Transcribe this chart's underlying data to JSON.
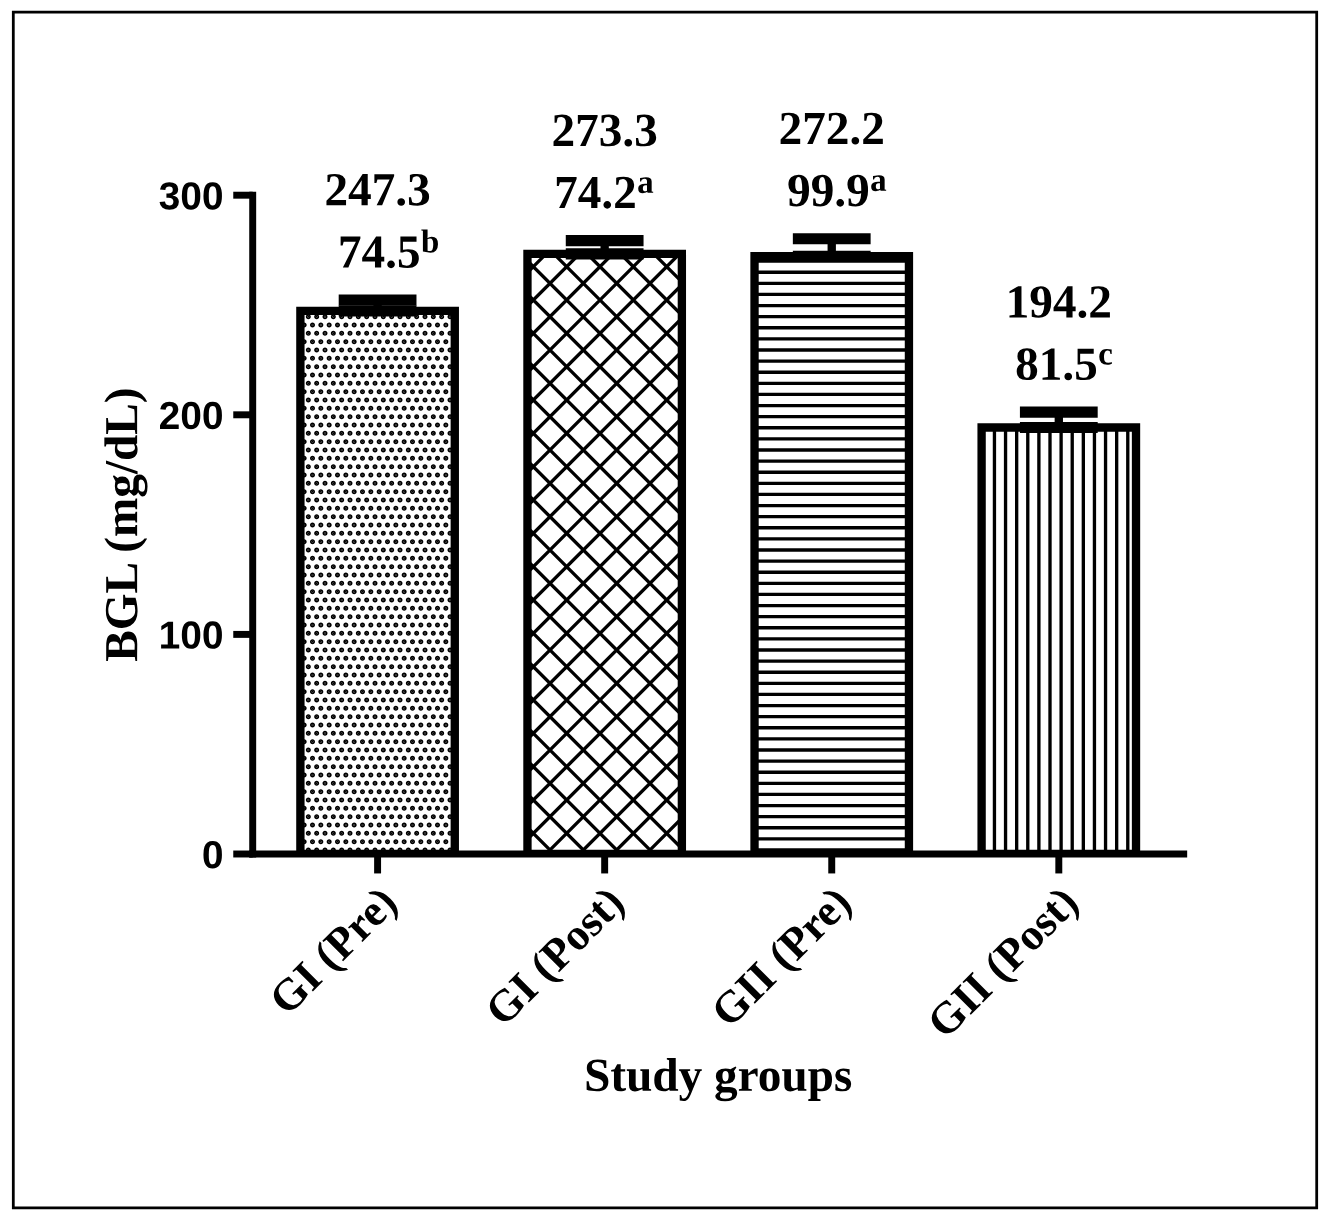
{
  "chart_data": {
    "type": "bar",
    "xlabel": "Study groups",
    "ylabel": "BGL (mg/dL)",
    "categories": [
      "GI (Pre)",
      "GI (Post)",
      "GII (Pre)",
      "GII (Post)"
    ],
    "values": [
      247.3,
      273.3,
      272.2,
      194.2
    ],
    "errors": [
      5,
      6,
      8,
      7
    ],
    "colors": [
      "#000000",
      "#000000",
      "#000000",
      "#000000"
    ],
    "value_labels": [
      "247.3\n  74.5$^{b}$",
      "273.3\n74.2$^{a}$",
      "272.2\n 99.9$^{a}$",
      "194.2\n 81.5$^{c}$"
    ],
    "ylim": [
      0,
      300
    ],
    "yticks": [
      0,
      100,
      200,
      300
    ],
    "grid": false,
    "legend": false
  }
}
